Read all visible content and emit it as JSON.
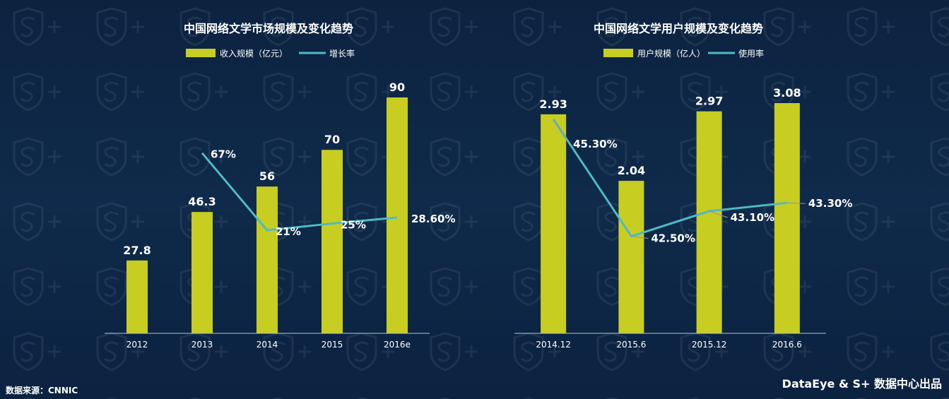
{
  "source": "数据来源：CNNIC",
  "brand": "DataEye & S+ 数据中心出品",
  "chart_data": [
    {
      "type": "bar",
      "title": "中国网络文学市场规模及变化趋势",
      "categories": [
        "2012",
        "2013",
        "2014",
        "2015",
        "2016e"
      ],
      "series": [
        {
          "name": "收入规模（亿元）",
          "type": "bar",
          "values": [
            27.8,
            46.3,
            56,
            70,
            90
          ],
          "labels": [
            "27.8",
            "46.3",
            "56",
            "70",
            "90"
          ],
          "color": "#c8cd22"
        },
        {
          "name": "增长率",
          "type": "line",
          "values": [
            null,
            67,
            21,
            25,
            28.6
          ],
          "labels": [
            "",
            "67%",
            "21%",
            "25%",
            "28.60%"
          ],
          "color": "#4fb9c4"
        }
      ],
      "ylim": [
        0,
        90
      ],
      "y2lim": [
        0,
        90
      ],
      "grid": false,
      "legend": "top-center"
    },
    {
      "type": "bar",
      "title": "中国网络文学用户规模及变化趋势",
      "categories": [
        "2014.12",
        "2015.6",
        "2015.12",
        "2016.6"
      ],
      "series": [
        {
          "name": "用户规模（亿人）",
          "type": "bar",
          "values": [
            2.93,
            2.04,
            2.97,
            3.08
          ],
          "labels": [
            "2.93",
            "2.04",
            "2.97",
            "3.08"
          ],
          "color": "#c8cd22"
        },
        {
          "name": "使用率",
          "type": "line",
          "values": [
            45.3,
            42.5,
            43.1,
            43.3
          ],
          "labels": [
            "45.30%",
            "42.50%",
            "43.10%",
            "43.30%"
          ],
          "color": "#4fb9c4"
        }
      ],
      "ylim": [
        0,
        3.08
      ],
      "y2lim": [
        42.07,
        45.55
      ],
      "grid": false,
      "legend": "top-center"
    }
  ]
}
